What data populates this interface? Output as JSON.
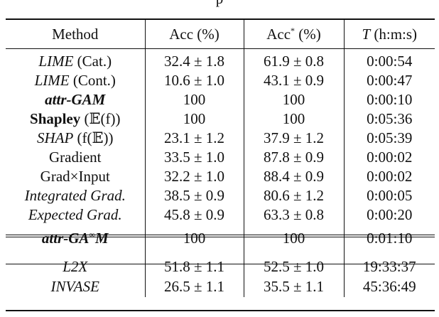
{
  "title_fragment": "p",
  "headers": {
    "method": "Method",
    "acc": "Acc (%)",
    "acc_star": "Acc",
    "acc_star_sup": "*",
    "acc_star_unit": "(%)",
    "time_var": "T",
    "time_unit": "(h:m:s)"
  },
  "groups": [
    {
      "rows": [
        {
          "method": "LIME",
          "suffix": " (Cat.)",
          "style": "italic-first",
          "acc": "32.4 ± 1.8",
          "acc_star": "61.9 ± 0.8",
          "time": "0:00:54"
        },
        {
          "method": "LIME",
          "suffix": " (Cont.)",
          "style": "italic-first",
          "acc": "10.6 ± 1.0",
          "acc_star": "43.1 ± 0.9",
          "time": "0:00:47"
        },
        {
          "method": "attr-GAM",
          "suffix": "",
          "style": "bold-italic",
          "acc": "100",
          "acc_star": "100",
          "time": "0:00:10",
          "bold_values": true
        },
        {
          "method": "Shapley",
          "suffix": " (𝔼(f))",
          "style": "bold-first",
          "acc": "100",
          "acc_star": "100",
          "time": "0:05:36",
          "bold_values": true
        },
        {
          "method": "SHAP",
          "suffix": " (f(𝔼))",
          "style": "italic-first",
          "acc": "23.1 ± 1.2",
          "acc_star": "37.9 ± 1.2",
          "time": "0:05:39"
        },
        {
          "method": "Gradient",
          "suffix": "",
          "style": "plain",
          "acc": "33.5 ± 1.0",
          "acc_star": "87.8 ± 0.9",
          "time": "0:00:02"
        },
        {
          "method": "Grad×Input",
          "suffix": "",
          "style": "plain",
          "acc": "32.2 ± 1.0",
          "acc_star": "88.4 ± 0.9",
          "time": "0:00:02"
        },
        {
          "method": "Integrated Grad.",
          "suffix": "",
          "style": "italic",
          "acc": "38.5 ± 0.9",
          "acc_star": "80.6 ± 1.2",
          "time": "0:00:05"
        },
        {
          "method": "Expected Grad.",
          "suffix": "",
          "style": "italic",
          "acc": "45.8 ± 0.9",
          "acc_star": "63.3 ± 0.8",
          "time": "0:00:20"
        }
      ]
    },
    {
      "rows": [
        {
          "method": "attr-GA",
          "sup": "∞",
          "method_tail": "M",
          "style": "bold-italic",
          "acc": "100",
          "acc_star": "100",
          "time": "0:01:10",
          "bold_values": true
        }
      ]
    },
    {
      "rows": [
        {
          "method": "L2X",
          "suffix": "",
          "style": "italic",
          "acc": "51.8 ± 1.1",
          "acc_star": "52.5 ± 1.0",
          "time": "19:33:37"
        },
        {
          "method": "INVASE",
          "suffix": "",
          "style": "italic",
          "acc": "26.5 ± 1.1",
          "acc_star": "35.5 ± 1.1",
          "time": "45:36:49"
        }
      ]
    }
  ]
}
